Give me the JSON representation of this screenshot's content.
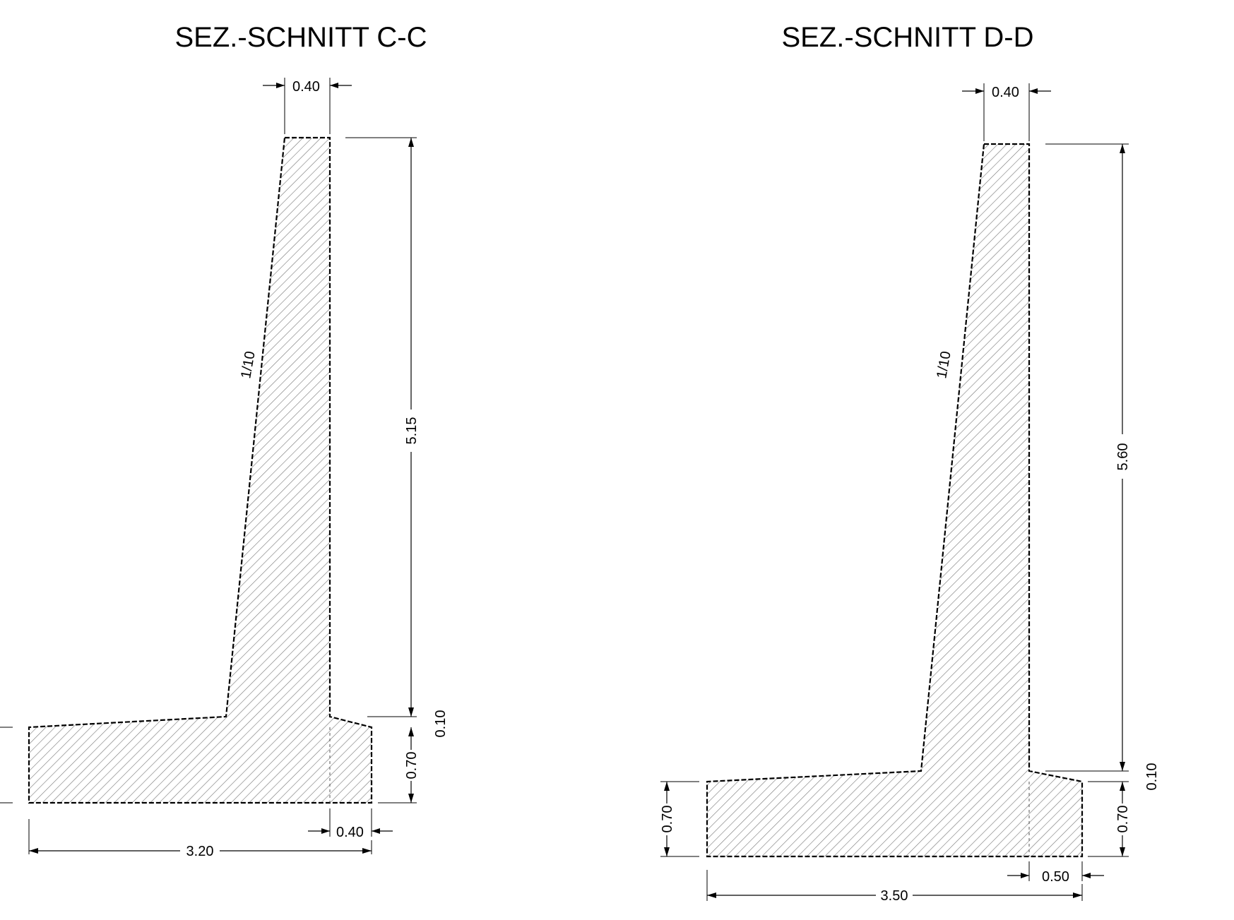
{
  "sections": [
    {
      "title": "SEZ.-SCHNITT C-C",
      "slope": "1/10",
      "dims": {
        "top": "0.40",
        "height": "5.15",
        "step": "0.10",
        "footing": "0.70",
        "toe": "0.40",
        "base": "3.20"
      }
    },
    {
      "title": "SEZ.-SCHNITT D-D",
      "slope": "1/10",
      "dims": {
        "top": "0.40",
        "height": "5.60",
        "step": "0.10",
        "footing_left": "0.70",
        "footing": "0.70",
        "toe": "0.50",
        "base": "3.50"
      }
    }
  ]
}
